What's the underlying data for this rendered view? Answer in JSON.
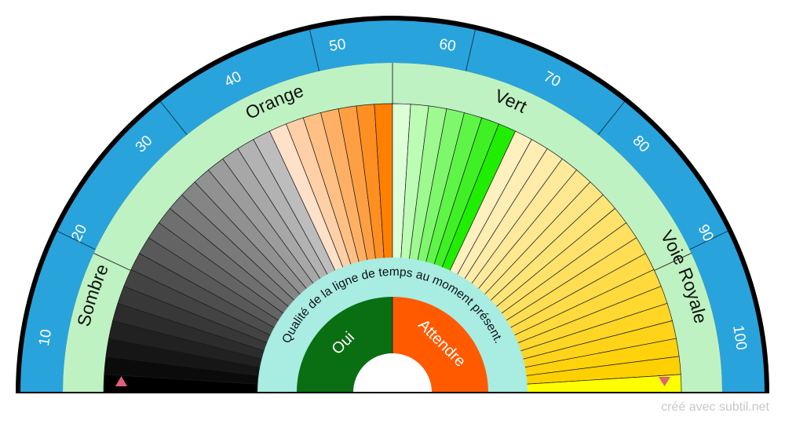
{
  "diagram": {
    "center_title": "Qualité de la ligne de temps au moment présent.",
    "scale_ticks": [
      "10",
      "20",
      "30",
      "40",
      "50",
      "60",
      "70",
      "80",
      "90",
      "100"
    ],
    "zones": [
      {
        "label": "Sombre",
        "from": 0,
        "to": 35
      },
      {
        "label": "Orange",
        "from": 35,
        "to": 50
      },
      {
        "label": "Vert",
        "from": 50,
        "to": 65
      },
      {
        "label": "Voie Royale",
        "from": 65,
        "to": 100
      }
    ],
    "answers": [
      {
        "label": "Oui",
        "color": "#0a6e12"
      },
      {
        "label": "Attendre",
        "color": "#ff5a00"
      }
    ],
    "colors": {
      "scale_band": "#29a3dc",
      "zone_band": "#bff2c2",
      "center_ring": "#a8ece2",
      "marker": "#e0607a",
      "outer_rim": "#000000"
    }
  },
  "footer": {
    "credit": "créé avec subtil.net"
  }
}
